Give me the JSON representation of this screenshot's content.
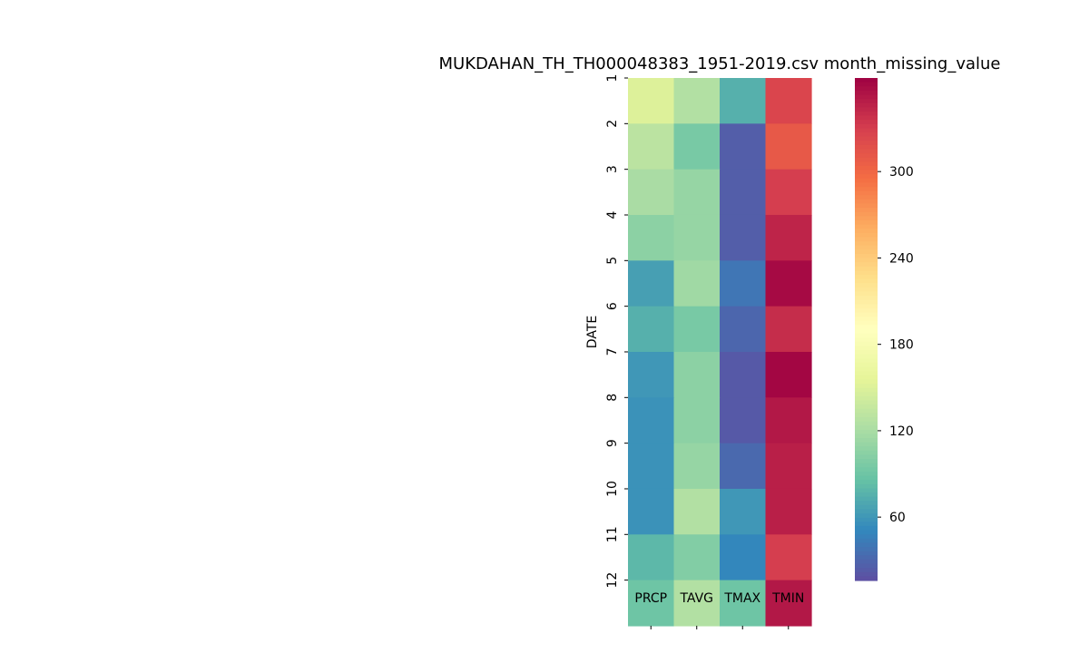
{
  "chart_data": {
    "type": "heatmap",
    "title": "MUKDAHAN_TH_TH000048383_1951-2019.csv month_missing_value",
    "xlabel": "",
    "ylabel": "DATE",
    "columns": [
      "PRCP",
      "TAVG",
      "TMAX",
      "TMIN"
    ],
    "rows": [
      "1",
      "2",
      "3",
      "4",
      "5",
      "6",
      "7",
      "8",
      "9",
      "10",
      "11",
      "12"
    ],
    "values": [
      [
        150,
        125,
        75,
        325
      ],
      [
        130,
        95,
        25,
        310
      ],
      [
        120,
        110,
        25,
        330
      ],
      [
        105,
        110,
        25,
        345
      ],
      [
        65,
        115,
        40,
        360
      ],
      [
        75,
        95,
        30,
        340
      ],
      [
        60,
        105,
        22,
        362
      ],
      [
        57,
        105,
        22,
        352
      ],
      [
        57,
        110,
        32,
        348
      ],
      [
        57,
        125,
        60,
        348
      ],
      [
        80,
        100,
        50,
        330
      ],
      [
        90,
        125,
        90,
        352
      ]
    ],
    "colormap": "Spectral_r",
    "vmin": 16,
    "vmax": 365,
    "colorbar_ticks": [
      60,
      120,
      180,
      240,
      300
    ]
  }
}
